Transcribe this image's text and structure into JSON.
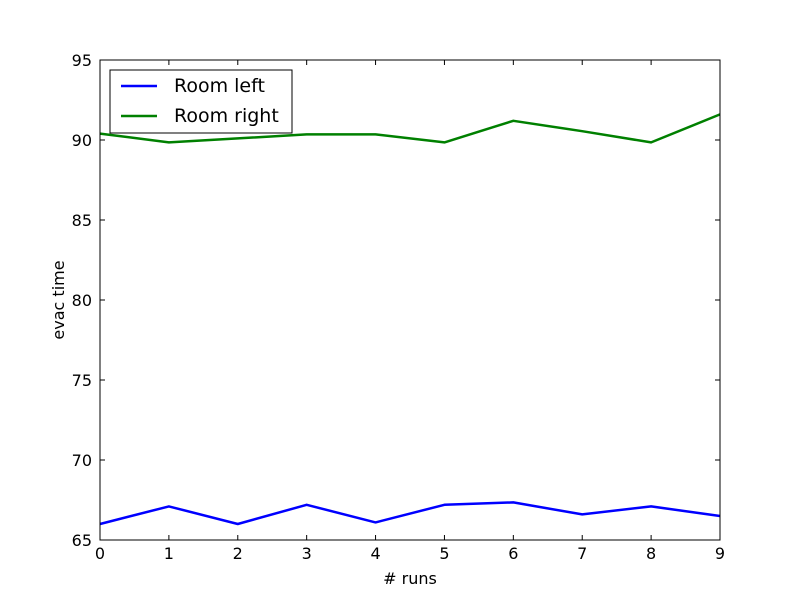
{
  "chart_data": {
    "type": "line",
    "title": "",
    "xlabel": "# runs",
    "ylabel": "evac time",
    "xlim": [
      0,
      9
    ],
    "ylim": [
      65,
      95
    ],
    "x": [
      0,
      1,
      2,
      3,
      4,
      5,
      6,
      7,
      8,
      9
    ],
    "xticks": [
      "0",
      "1",
      "2",
      "3",
      "4",
      "5",
      "6",
      "7",
      "8",
      "9"
    ],
    "yticks": [
      "65",
      "70",
      "75",
      "80",
      "85",
      "90",
      "95"
    ],
    "grid": false,
    "legend_position": "top-left",
    "series": [
      {
        "name": "Room left",
        "color": "#0000ff",
        "values": [
          66.0,
          67.1,
          66.0,
          67.2,
          66.1,
          67.2,
          67.35,
          66.6,
          67.1,
          66.5
        ]
      },
      {
        "name": "Room right",
        "color": "#008000",
        "values": [
          90.4,
          89.85,
          90.1,
          90.35,
          90.35,
          89.85,
          91.2,
          90.55,
          89.85,
          91.6
        ]
      }
    ]
  }
}
